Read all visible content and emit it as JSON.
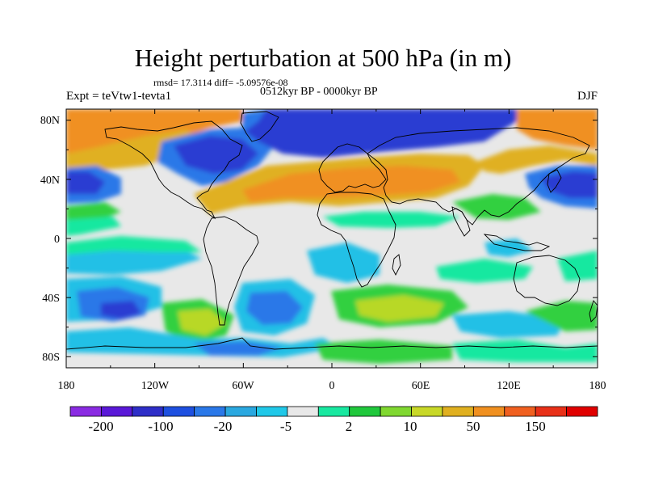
{
  "title": "Height perturbation at 500 hPa (in m)",
  "stats": "rmsd= 17.3114 diff= -5.09576e-08",
  "period": "0512kyr BP - 0000kyr BP",
  "experiment": "Expt = teVtw1-tevta1",
  "season": "DJF",
  "lat_labels": [
    "80N",
    "40N",
    "0",
    "40S",
    "80S"
  ],
  "lon_labels": [
    "180",
    "120W",
    "60W",
    "0",
    "60E",
    "120E",
    "180"
  ],
  "colorbar": {
    "colors": [
      "#8a2be2",
      "#5a18d8",
      "#2e2ec8",
      "#1e50e0",
      "#2a78e8",
      "#2aa8e0",
      "#20c8e8",
      "#e8e8e8",
      "#18e8a0",
      "#20c83c",
      "#80d830",
      "#c8d828",
      "#e0b020",
      "#f09020",
      "#f06020",
      "#e83018",
      "#e00000"
    ],
    "labels": [
      "-200",
      "-100",
      "-20",
      "-5",
      "2",
      "10",
      "50",
      "150"
    ]
  },
  "field_colors": {
    "neutral": "#e8e8e8",
    "blue_dark": "#2a3cd2",
    "blue_mid": "#2a78e8",
    "cyan": "#22c0e6",
    "green_light": "#18e8a0",
    "green": "#32d040",
    "yellow_green": "#b8d828",
    "orange_yellow": "#e0b020",
    "orange": "#f09020",
    "coast": "#000000"
  }
}
